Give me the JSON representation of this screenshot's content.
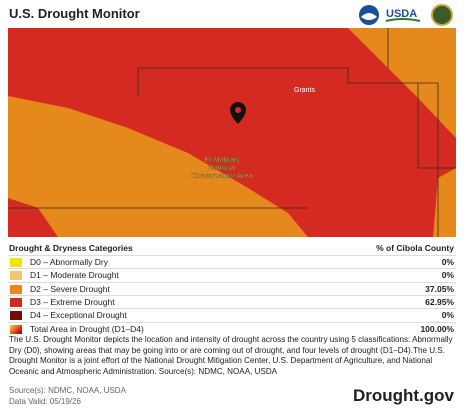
{
  "header": {
    "title": "U.S. Drought Monitor",
    "usda_logo": "USDA"
  },
  "map": {
    "city": "Grants",
    "area_lines": [
      "El Malpais",
      "National",
      "Conservation Area"
    ]
  },
  "legend": {
    "category_header": "Drought & Dryness Categories",
    "percent_header": "% of Cibola County",
    "rows": [
      {
        "label": "D0 – Abnormally Dry",
        "percent": "0%",
        "color": "#f2e600"
      },
      {
        "label": "D1 – Moderate Drought",
        "percent": "0%",
        "color": "#f5c27a"
      },
      {
        "label": "D2 – Severe Drought",
        "percent": "37.05%",
        "color": "#e6891c"
      },
      {
        "label": "D3 – Extreme Drought",
        "percent": "62.95%",
        "color": "#d42a22"
      },
      {
        "label": "D4 – Exceptional Drought",
        "percent": "0%",
        "color": "#6e0f0c"
      },
      {
        "label": "Total Area in Drought (D1–D4)",
        "percent": "100.00%"
      }
    ]
  },
  "description": "The U.S. Drought Monitor depicts the location and intensity of drought across the country using 5 classifications: Abnormally Dry (D0), showing areas that may be going into or are coming out of drought, and four levels of drought (D1–D4).The U.S. Drought Monitor is a joint effort of the National Drought Mitigation Center, U.S. Department of Agriculture, and National Oceanic and Atmospheric Administration. Source(s): NDMC, NOAA, USDA",
  "source": "Source(s): NDMC, NOAA, USDA",
  "data_valid": "Data Valid: 05/19/26",
  "site": "Drought.gov"
}
